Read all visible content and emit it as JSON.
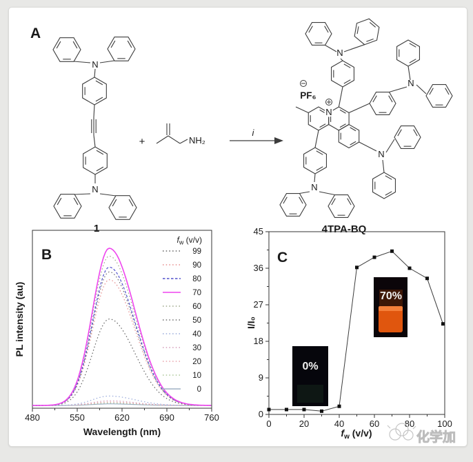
{
  "page": {
    "watermark_text": "化学加"
  },
  "panel_a": {
    "label": "A",
    "reactant_name": "1",
    "product_name": "4TPA-BQ",
    "plus": "+",
    "arrow_label": "i",
    "amine_group": "NH₂",
    "counterion": "PF₆",
    "atom_n": "N"
  },
  "panel_b": {
    "label": "B",
    "xlabel": "Wavelength (nm)",
    "ylabel": "PL intensity (au)",
    "legend_title_f": "f",
    "legend_title_w": "w",
    "legend_title_unit": " (v/v)"
  },
  "panel_c": {
    "label": "C",
    "ylabel": "I/I₀",
    "xlabel_f": "f",
    "xlabel_w": "w",
    "xlabel_unit": " (v/v)",
    "inset_low_label": "0%",
    "inset_high_label": "70%"
  },
  "chart_data": [
    {
      "type": "line",
      "panel": "B",
      "title": "",
      "xlabel": "Wavelength (nm)",
      "ylabel": "PL intensity (au)",
      "xlim": [
        480,
        760
      ],
      "xticks": [
        480,
        550,
        620,
        690,
        760
      ],
      "grid": false,
      "legend_title": "fw (v/v)",
      "legend_position": "top-right-inside",
      "peak_wavelength_nm": 600,
      "series": [
        {
          "name": "99",
          "peak_rel": 0.55,
          "color": "#5f5f5f",
          "style": "dotted"
        },
        {
          "name": "90",
          "peak_rel": 0.8,
          "color": "#e68a8a",
          "style": "dotted"
        },
        {
          "name": "80",
          "peak_rel": 0.88,
          "color": "#5050cc",
          "style": "dashed"
        },
        {
          "name": "70",
          "peak_rel": 1.0,
          "color": "#ee44ee",
          "style": "solid"
        },
        {
          "name": "60",
          "peak_rel": 0.95,
          "color": "#9aa585",
          "style": "dotted"
        },
        {
          "name": "50",
          "peak_rel": 0.85,
          "color": "#6b6b6b",
          "style": "dotted"
        },
        {
          "name": "40",
          "peak_rel": 0.06,
          "color": "#96a8da",
          "style": "dotted"
        },
        {
          "name": "30",
          "peak_rel": 0.03,
          "color": "#d49ab8",
          "style": "dotted"
        },
        {
          "name": "20",
          "peak_rel": 0.022,
          "color": "#e8a0a8",
          "style": "dotted"
        },
        {
          "name": "10",
          "peak_rel": 0.016,
          "color": "#aac695",
          "style": "dotted"
        },
        {
          "name": "0",
          "peak_rel": 0.01,
          "color": "#9fb0c4",
          "style": "solid"
        }
      ]
    },
    {
      "type": "scatter-line",
      "panel": "C",
      "xlabel": "fw (v/v)",
      "ylabel": "I/I0",
      "xlim": [
        0,
        100
      ],
      "ylim": [
        0,
        45
      ],
      "xticks": [
        0,
        20,
        40,
        60,
        80,
        100
      ],
      "yticks": [
        0,
        9,
        18,
        27,
        36,
        45
      ],
      "marker": "square",
      "marker_color": "#111111",
      "x": [
        0,
        10,
        20,
        30,
        40,
        50,
        60,
        70,
        80,
        90,
        99
      ],
      "y": [
        1.2,
        1.2,
        1.2,
        0.8,
        2.0,
        36.2,
        38.7,
        40.2,
        36.0,
        33.5,
        22.3
      ],
      "insets": [
        {
          "label": "0%",
          "description": "dark non-emissive vial photo"
        },
        {
          "label": "70%",
          "description": "bright orange emissive vial photo"
        }
      ]
    }
  ]
}
